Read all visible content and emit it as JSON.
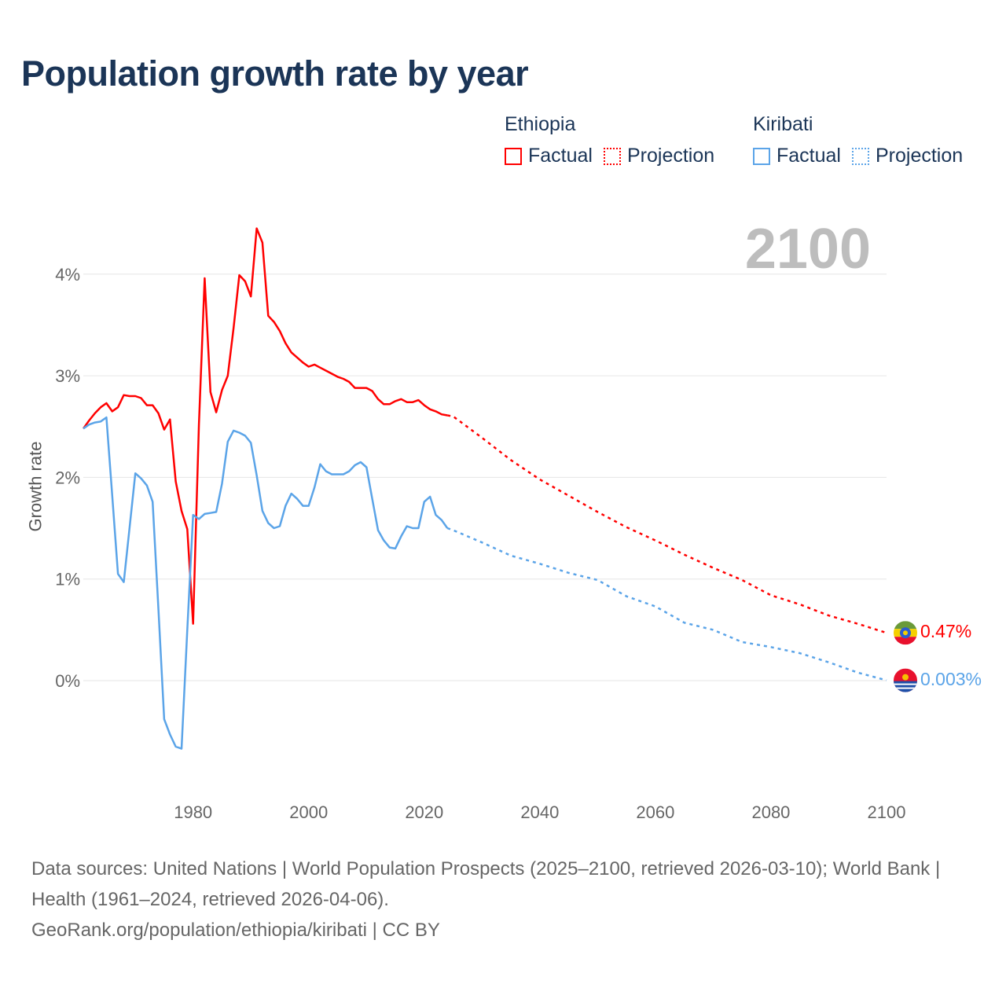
{
  "chart_data": {
    "type": "line",
    "title": "Population growth rate by year",
    "ylabel": "Growth rate",
    "xlabel": "",
    "current_year_label": "2100",
    "xlim": [
      1961,
      2100
    ],
    "ylim": [
      -1.05,
      4.55
    ],
    "x_ticks": [
      1980,
      2000,
      2020,
      2040,
      2060,
      2080,
      2100
    ],
    "y_ticks": [
      0,
      1,
      2,
      3,
      4
    ],
    "y_tick_labels": [
      "0%",
      "1%",
      "2%",
      "3%",
      "4%"
    ],
    "grid": true,
    "legend_position": "top-right",
    "legend": {
      "groups": [
        {
          "name": "Ethiopia",
          "items": [
            "Factual",
            "Projection"
          ],
          "color": "#ff0000"
        },
        {
          "name": "Kiribati",
          "items": [
            "Factual",
            "Projection"
          ],
          "color": "#5ba4e8"
        }
      ]
    },
    "series": [
      {
        "name": "Ethiopia",
        "color": "#ff0000",
        "end_label": "0.47%",
        "flag": "ethiopia-flag",
        "factual": {
          "x": [
            1961,
            1962,
            1963,
            1964,
            1965,
            1966,
            1967,
            1968,
            1969,
            1970,
            1971,
            1972,
            1973,
            1974,
            1975,
            1976,
            1977,
            1978,
            1979,
            1980,
            1981,
            1982,
            1983,
            1984,
            1985,
            1986,
            1987,
            1988,
            1989,
            1990,
            1991,
            1992,
            1993,
            1994,
            1995,
            1996,
            1997,
            1998,
            1999,
            2000,
            2001,
            2002,
            2003,
            2004,
            2005,
            2006,
            2007,
            2008,
            2009,
            2010,
            2011,
            2012,
            2013,
            2014,
            2015,
            2016,
            2017,
            2018,
            2019,
            2020,
            2021,
            2022,
            2023,
            2024
          ],
          "y": [
            2.48,
            2.56,
            2.63,
            2.69,
            2.73,
            2.65,
            2.69,
            2.81,
            2.8,
            2.8,
            2.78,
            2.71,
            2.71,
            2.63,
            2.47,
            2.57,
            1.96,
            1.67,
            1.49,
            0.56,
            2.52,
            3.96,
            2.84,
            2.64,
            2.86,
            3.0,
            3.47,
            3.99,
            3.93,
            3.78,
            4.45,
            4.31,
            3.59,
            3.53,
            3.44,
            3.32,
            3.23,
            3.18,
            3.13,
            3.09,
            3.11,
            3.08,
            3.05,
            3.02,
            2.99,
            2.97,
            2.94,
            2.88,
            2.88,
            2.88,
            2.85,
            2.77,
            2.72,
            2.72,
            2.75,
            2.77,
            2.74,
            2.74,
            2.76,
            2.71,
            2.67,
            2.65,
            2.62,
            2.61
          ]
        },
        "projection": {
          "x": [
            2024,
            2025,
            2030,
            2035,
            2040,
            2045,
            2050,
            2055,
            2060,
            2065,
            2070,
            2075,
            2080,
            2085,
            2090,
            2095,
            2100
          ],
          "y": [
            2.61,
            2.6,
            2.39,
            2.17,
            1.98,
            1.82,
            1.66,
            1.51,
            1.38,
            1.24,
            1.11,
            0.99,
            0.84,
            0.75,
            0.64,
            0.56,
            0.47
          ]
        }
      },
      {
        "name": "Kiribati",
        "color": "#5ba4e8",
        "end_label": "0.003%",
        "flag": "kiribati-flag",
        "factual": {
          "x": [
            1961,
            1962,
            1963,
            1964,
            1965,
            1966,
            1967,
            1968,
            1969,
            1970,
            1971,
            1972,
            1973,
            1974,
            1975,
            1976,
            1977,
            1978,
            1979,
            1980,
            1981,
            1982,
            1983,
            1984,
            1985,
            1986,
            1987,
            1988,
            1989,
            1990,
            1991,
            1992,
            1993,
            1994,
            1995,
            1996,
            1997,
            1998,
            1999,
            2000,
            2001,
            2002,
            2003,
            2004,
            2005,
            2006,
            2007,
            2008,
            2009,
            2010,
            2011,
            2012,
            2013,
            2014,
            2015,
            2016,
            2017,
            2018,
            2019,
            2020,
            2021,
            2022,
            2023,
            2024
          ],
          "y": [
            2.48,
            2.52,
            2.54,
            2.55,
            2.59,
            1.82,
            1.05,
            0.97,
            1.5,
            2.04,
            1.99,
            1.92,
            1.76,
            0.7,
            -0.38,
            -0.53,
            -0.65,
            -0.67,
            0.5,
            1.63,
            1.59,
            1.64,
            1.65,
            1.66,
            1.94,
            2.35,
            2.46,
            2.44,
            2.41,
            2.34,
            2.02,
            1.67,
            1.55,
            1.5,
            1.52,
            1.72,
            1.84,
            1.79,
            1.72,
            1.72,
            1.9,
            2.13,
            2.06,
            2.03,
            2.03,
            2.03,
            2.06,
            2.12,
            2.15,
            2.1,
            1.79,
            1.48,
            1.38,
            1.31,
            1.3,
            1.42,
            1.52,
            1.5,
            1.5,
            1.76,
            1.81,
            1.63,
            1.58,
            1.5
          ]
        },
        "projection": {
          "x": [
            2024,
            2025,
            2030,
            2035,
            2040,
            2045,
            2050,
            2055,
            2060,
            2065,
            2070,
            2075,
            2080,
            2085,
            2090,
            2095,
            2100
          ],
          "y": [
            1.5,
            1.48,
            1.36,
            1.23,
            1.15,
            1.06,
            0.99,
            0.83,
            0.73,
            0.57,
            0.5,
            0.38,
            0.33,
            0.27,
            0.18,
            0.08,
            0.003
          ]
        }
      }
    ]
  },
  "footer": {
    "sources": "Data sources: United Nations | World Population Prospects (2025–2100, retrieved 2026-03-10); World Bank | Health (1961–2024, retrieved 2026-04-06).",
    "attribution": "GeoRank.org/population/ethiopia/kiribati | CC BY"
  }
}
